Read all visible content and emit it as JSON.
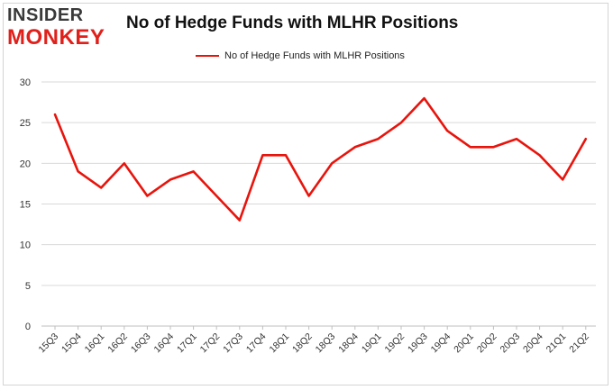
{
  "logo": {
    "top": "INSIDER",
    "bottom": "MONKEY"
  },
  "chart_data": {
    "type": "line",
    "title": "No of Hedge Funds with MLHR Positions",
    "xlabel": "",
    "ylabel": "",
    "ylim": [
      0,
      30
    ],
    "yticks": [
      0,
      5,
      10,
      15,
      20,
      25,
      30
    ],
    "grid": true,
    "legend_position": "top-center",
    "categories": [
      "15Q3",
      "15Q4",
      "16Q1",
      "16Q2",
      "16Q3",
      "16Q4",
      "17Q1",
      "17Q2",
      "17Q3",
      "17Q4",
      "18Q1",
      "18Q2",
      "18Q3",
      "18Q4",
      "19Q1",
      "19Q2",
      "19Q3",
      "19Q4",
      "20Q1",
      "20Q2",
      "20Q3",
      "20Q4",
      "21Q1",
      "21Q2"
    ],
    "series": [
      {
        "name": "No of Hedge Funds with MLHR Positions",
        "color": "#e8140c",
        "values": [
          26,
          19,
          17,
          20,
          16,
          18,
          19,
          16,
          13,
          21,
          21,
          16,
          20,
          22,
          23,
          25,
          28,
          24,
          22,
          22,
          23,
          21,
          18,
          23
        ]
      }
    ]
  }
}
